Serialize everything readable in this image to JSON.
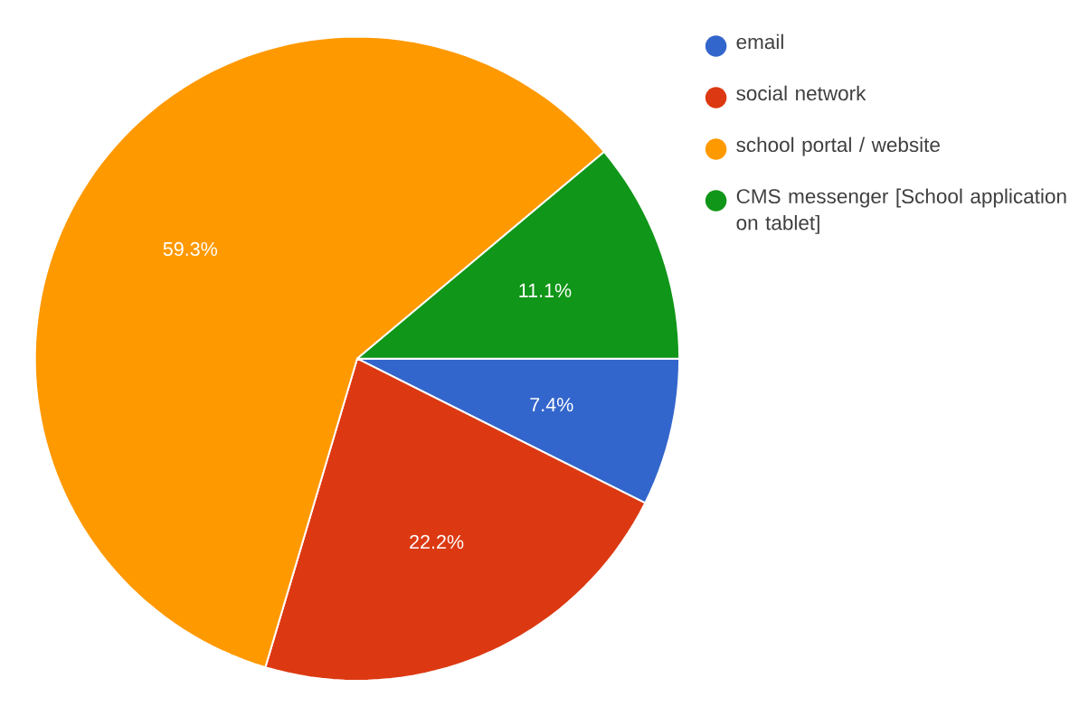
{
  "chart_data": {
    "type": "pie",
    "categories": [
      "email",
      "social network",
      "school portal / website",
      "CMS messenger [School application on tablet]"
    ],
    "values": [
      7.4,
      22.2,
      59.3,
      11.1
    ],
    "colors": [
      "#3366cc",
      "#dc3912",
      "#ff9900",
      "#109618"
    ],
    "value_labels": [
      "7.4%",
      "22.2%",
      "59.3%",
      "11.1%"
    ],
    "legend": "right"
  }
}
